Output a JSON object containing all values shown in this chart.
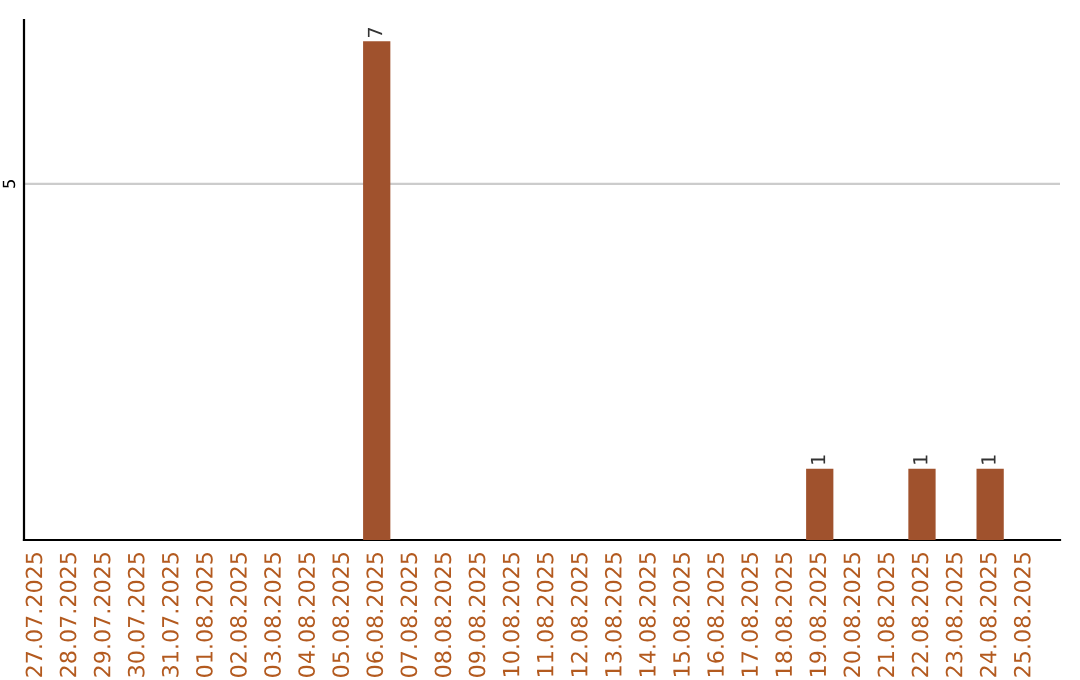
{
  "chart_data": {
    "type": "bar",
    "categories": [
      "27.07.2025",
      "28.07.2025",
      "29.07.2025",
      "30.07.2025",
      "31.07.2025",
      "01.08.2025",
      "02.08.2025",
      "03.08.2025",
      "04.08.2025",
      "05.08.2025",
      "06.08.2025",
      "07.08.2025",
      "08.08.2025",
      "09.08.2025",
      "10.08.2025",
      "11.08.2025",
      "12.08.2025",
      "13.08.2025",
      "14.08.2025",
      "15.08.2025",
      "16.08.2025",
      "17.08.2025",
      "18.08.2025",
      "19.08.2025",
      "20.08.2025",
      "21.08.2025",
      "22.08.2025",
      "23.08.2025",
      "24.08.2025",
      "25.08.2025"
    ],
    "values": [
      0,
      0,
      0,
      0,
      0,
      0,
      0,
      0,
      0,
      0,
      7,
      0,
      0,
      0,
      0,
      0,
      0,
      0,
      0,
      0,
      0,
      0,
      0,
      1,
      0,
      0,
      1,
      0,
      1,
      0
    ],
    "value_labels": [
      null,
      null,
      null,
      null,
      null,
      null,
      null,
      null,
      null,
      null,
      "7",
      null,
      null,
      null,
      null,
      null,
      null,
      null,
      null,
      null,
      null,
      null,
      null,
      "1",
      null,
      null,
      "1",
      null,
      "1",
      null
    ],
    "color": "#a0522d",
    "ylim": [
      0,
      7.3
    ],
    "yticks": [
      5
    ],
    "grid": "y"
  }
}
